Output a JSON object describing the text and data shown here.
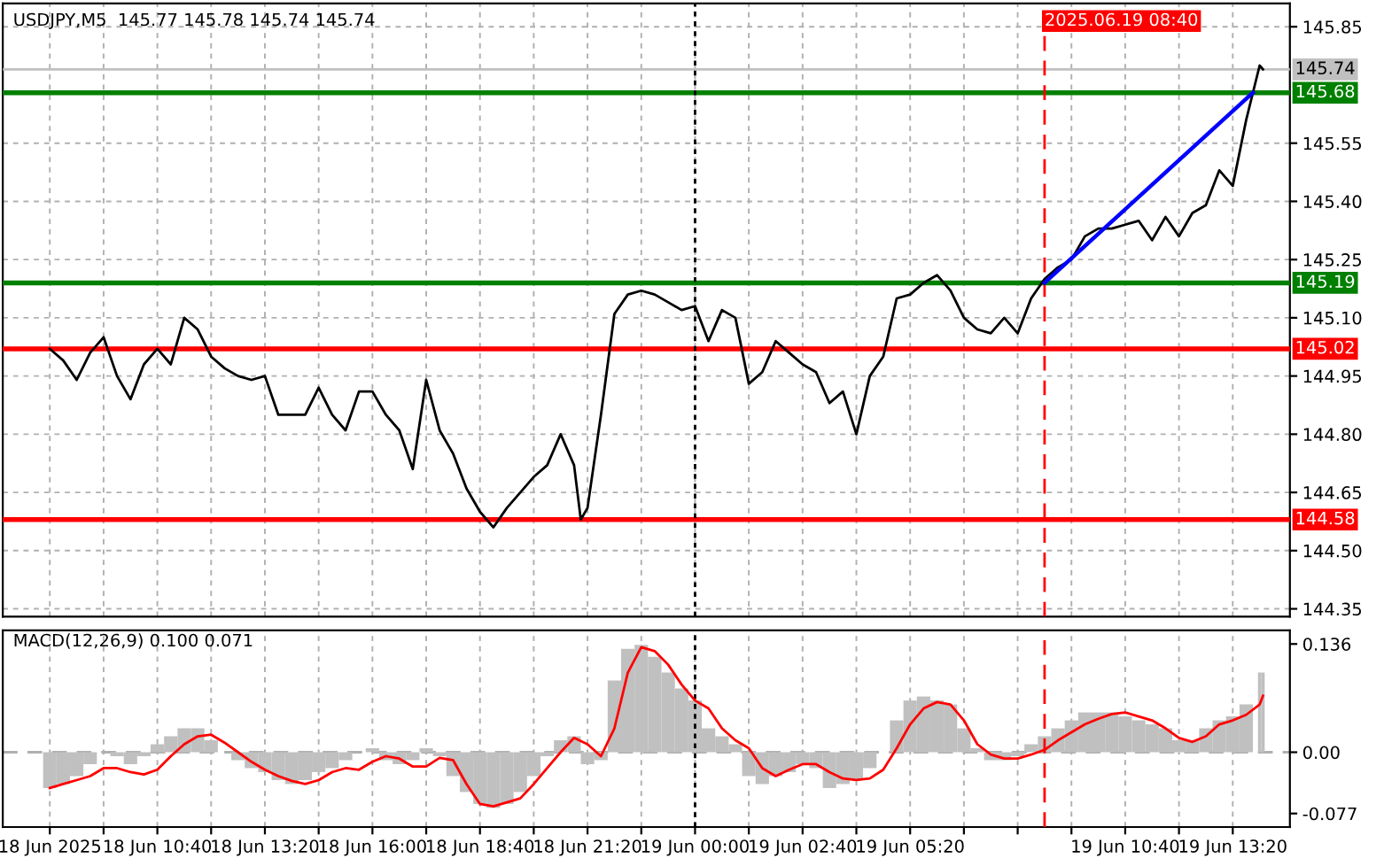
{
  "chart_data": [
    {
      "type": "line",
      "title": "USDJPY,M5  145.77 145.78 145.74 145.74",
      "xlim": [
        "2025-06-18T06:50",
        "2025-06-19T14:45"
      ],
      "xticks": [
        {
          "value": "2025-06-18T08:00",
          "label": null
        },
        {
          "value": "2025-06-18T09:20",
          "label": null
        },
        {
          "value": "2025-06-18T10:40",
          "label": null
        },
        {
          "value": "2025-06-18T12:00",
          "label": null
        },
        {
          "value": "2025-06-18T13:20",
          "label": null
        },
        {
          "value": "2025-06-18T14:40",
          "label": null
        },
        {
          "value": "2025-06-18T16:00",
          "label": null
        },
        {
          "value": "2025-06-18T17:20",
          "label": null
        },
        {
          "value": "2025-06-18T18:40",
          "label": null
        },
        {
          "value": "2025-06-18T20:00",
          "label": null
        },
        {
          "value": "2025-06-18T21:20",
          "label": null
        },
        {
          "value": "2025-06-18T22:40",
          "label": null
        },
        {
          "value": "2025-06-19T00:00",
          "label": null
        },
        {
          "value": "2025-06-19T01:20",
          "label": null
        },
        {
          "value": "2025-06-19T02:40",
          "label": null
        },
        {
          "value": "2025-06-19T04:00",
          "label": null
        },
        {
          "value": "2025-06-19T05:20",
          "label": null
        },
        {
          "value": "2025-06-19T06:40",
          "label": null
        },
        {
          "value": "2025-06-19T08:00",
          "label": null
        },
        {
          "value": "2025-06-19T09:20",
          "label": null
        },
        {
          "value": "2025-06-19T10:40",
          "label": null
        },
        {
          "value": "2025-06-19T12:00",
          "label": null
        },
        {
          "value": "2025-06-19T13:20",
          "label": null
        }
      ],
      "ylim": [
        144.33,
        145.91
      ],
      "yticks": [
        {
          "value": 144.35,
          "label": "144.35"
        },
        {
          "value": 144.5,
          "label": "144.50"
        },
        {
          "value": 144.65,
          "label": "144.65"
        },
        {
          "value": 144.8,
          "label": "144.80"
        },
        {
          "value": 144.95,
          "label": "144.95"
        },
        {
          "value": 145.1,
          "label": "145.10"
        },
        {
          "value": 145.25,
          "label": "145.25"
        },
        {
          "value": 145.4,
          "label": "145.40"
        },
        {
          "value": 145.55,
          "label": "145.55"
        },
        {
          "value": 145.85,
          "label": "145.85"
        }
      ],
      "tick_labels": "y",
      "grid": true,
      "series": [
        {
          "color": "#000000",
          "x": [
            "2025-06-18T08:00",
            "2025-06-18T08:20",
            "2025-06-18T08:40",
            "2025-06-18T09:00",
            "2025-06-18T09:20",
            "2025-06-18T09:40",
            "2025-06-18T10:00",
            "2025-06-18T10:20",
            "2025-06-18T10:40",
            "2025-06-18T11:00",
            "2025-06-18T11:20",
            "2025-06-18T11:40",
            "2025-06-18T12:00",
            "2025-06-18T12:20",
            "2025-06-18T12:40",
            "2025-06-18T13:00",
            "2025-06-18T13:20",
            "2025-06-18T13:40",
            "2025-06-18T14:00",
            "2025-06-18T14:20",
            "2025-06-18T14:40",
            "2025-06-18T15:00",
            "2025-06-18T15:20",
            "2025-06-18T15:40",
            "2025-06-18T16:00",
            "2025-06-18T16:20",
            "2025-06-18T16:40",
            "2025-06-18T17:00",
            "2025-06-18T17:20",
            "2025-06-18T17:40",
            "2025-06-18T18:00",
            "2025-06-18T18:20",
            "2025-06-18T18:40",
            "2025-06-18T19:00",
            "2025-06-18T19:20",
            "2025-06-18T19:40",
            "2025-06-18T20:00",
            "2025-06-18T20:20",
            "2025-06-18T20:40",
            "2025-06-18T21:00",
            "2025-06-18T21:10",
            "2025-06-18T21:20",
            "2025-06-18T21:40",
            "2025-06-18T22:00",
            "2025-06-18T22:20",
            "2025-06-18T22:40",
            "2025-06-18T23:00",
            "2025-06-18T23:20",
            "2025-06-18T23:40",
            "2025-06-19T00:00",
            "2025-06-19T00:20",
            "2025-06-19T00:40",
            "2025-06-19T01:00",
            "2025-06-19T01:20",
            "2025-06-19T01:40",
            "2025-06-19T02:00",
            "2025-06-19T02:20",
            "2025-06-19T02:40",
            "2025-06-19T03:00",
            "2025-06-19T03:20",
            "2025-06-19T03:40",
            "2025-06-19T04:00",
            "2025-06-19T04:20",
            "2025-06-19T04:40",
            "2025-06-19T05:00",
            "2025-06-19T05:20",
            "2025-06-19T05:40",
            "2025-06-19T06:00",
            "2025-06-19T06:20",
            "2025-06-19T06:40",
            "2025-06-19T07:00",
            "2025-06-19T07:20",
            "2025-06-19T07:40",
            "2025-06-19T08:00",
            "2025-06-19T08:20",
            "2025-06-19T08:40",
            "2025-06-19T09:00",
            "2025-06-19T09:20",
            "2025-06-19T09:40",
            "2025-06-19T10:00",
            "2025-06-19T10:20",
            "2025-06-19T10:40",
            "2025-06-19T11:00",
            "2025-06-19T11:20",
            "2025-06-19T11:40",
            "2025-06-19T12:00",
            "2025-06-19T12:20",
            "2025-06-19T12:40",
            "2025-06-19T13:00",
            "2025-06-19T13:20",
            "2025-06-19T13:40",
            "2025-06-19T14:00",
            "2025-06-19T14:05"
          ],
          "values": [
            145.02,
            144.99,
            144.94,
            145.01,
            145.05,
            144.95,
            144.89,
            144.98,
            145.02,
            144.98,
            145.1,
            145.07,
            145.0,
            144.97,
            144.95,
            144.94,
            144.95,
            144.85,
            144.85,
            144.85,
            144.92,
            144.85,
            144.81,
            144.91,
            144.91,
            144.85,
            144.81,
            144.71,
            144.94,
            144.81,
            144.75,
            144.66,
            144.6,
            144.56,
            144.61,
            144.65,
            144.69,
            144.72,
            144.8,
            144.72,
            144.58,
            144.61,
            144.85,
            145.11,
            145.16,
            145.17,
            145.16,
            145.14,
            145.12,
            145.13,
            145.04,
            145.12,
            145.1,
            144.93,
            144.96,
            145.04,
            145.01,
            144.98,
            144.96,
            144.88,
            144.91,
            144.8,
            144.95,
            145.0,
            145.15,
            145.16,
            145.19,
            145.21,
            145.17,
            145.1,
            145.07,
            145.06,
            145.1,
            145.06,
            145.15,
            145.2,
            145.23,
            145.25,
            145.31,
            145.33,
            145.33,
            145.34,
            145.35,
            145.3,
            145.36,
            145.31,
            145.37,
            145.39,
            145.48,
            145.44,
            145.61,
            145.75,
            145.74
          ]
        },
        {
          "color": "#0000ff",
          "x": [
            "2025-06-19T08:40",
            "2025-06-19T13:50"
          ],
          "values": [
            145.19,
            145.68
          ]
        }
      ],
      "ref_lines": [
        {
          "axis": "y",
          "value": 145.74,
          "label": "145.74",
          "color": "#c0c0c0"
        },
        {
          "axis": "y",
          "value": 145.68,
          "label": "145.68",
          "color": "#008000"
        },
        {
          "axis": "y",
          "value": 145.19,
          "label": "145.19",
          "color": "#008000"
        },
        {
          "axis": "y",
          "value": 145.02,
          "label": "145.02",
          "color": "#ff0000"
        },
        {
          "axis": "y",
          "value": 144.58,
          "label": "144.58",
          "color": "#ff0000"
        },
        {
          "axis": "x",
          "value": "2025-06-19T00:00",
          "label": null,
          "color": "#000000",
          "line_style": "dotted"
        },
        {
          "axis": "x",
          "value": "2025-06-19T08:40",
          "label": "2025.06.19 08:40",
          "color": "#ff0000",
          "line_style": "dashed"
        }
      ]
    },
    {
      "type": "bar",
      "title": "MACD(12,26,9) 0.100 0.071",
      "x": [
        "2025-06-18T08:00",
        "2025-06-18T08:20",
        "2025-06-18T08:40",
        "2025-06-18T09:00",
        "2025-06-18T09:20",
        "2025-06-18T09:40",
        "2025-06-18T10:00",
        "2025-06-18T10:20",
        "2025-06-18T10:40",
        "2025-06-18T11:00",
        "2025-06-18T11:20",
        "2025-06-18T11:40",
        "2025-06-18T12:00",
        "2025-06-18T12:20",
        "2025-06-18T12:40",
        "2025-06-18T13:00",
        "2025-06-18T13:20",
        "2025-06-18T13:40",
        "2025-06-18T14:00",
        "2025-06-18T14:20",
        "2025-06-18T14:40",
        "2025-06-18T15:00",
        "2025-06-18T15:20",
        "2025-06-18T15:40",
        "2025-06-18T16:00",
        "2025-06-18T16:20",
        "2025-06-18T16:40",
        "2025-06-18T17:00",
        "2025-06-18T17:20",
        "2025-06-18T17:40",
        "2025-06-18T18:00",
        "2025-06-18T18:20",
        "2025-06-18T18:40",
        "2025-06-18T19:00",
        "2025-06-18T19:20",
        "2025-06-18T19:40",
        "2025-06-18T20:00",
        "2025-06-18T20:20",
        "2025-06-18T20:40",
        "2025-06-18T21:00",
        "2025-06-18T21:20",
        "2025-06-18T21:40",
        "2025-06-18T22:00",
        "2025-06-18T22:20",
        "2025-06-18T22:40",
        "2025-06-18T23:00",
        "2025-06-18T23:20",
        "2025-06-18T23:40",
        "2025-06-19T00:00",
        "2025-06-19T00:20",
        "2025-06-19T00:40",
        "2025-06-19T01:00",
        "2025-06-19T01:20",
        "2025-06-19T01:40",
        "2025-06-19T02:00",
        "2025-06-19T02:20",
        "2025-06-19T02:40",
        "2025-06-19T03:00",
        "2025-06-19T03:20",
        "2025-06-19T03:40",
        "2025-06-19T04:00",
        "2025-06-19T04:20",
        "2025-06-19T04:40",
        "2025-06-19T05:00",
        "2025-06-19T05:20",
        "2025-06-19T05:40",
        "2025-06-19T06:00",
        "2025-06-19T06:20",
        "2025-06-19T06:40",
        "2025-06-19T07:00",
        "2025-06-19T07:20",
        "2025-06-19T07:40",
        "2025-06-19T08:00",
        "2025-06-19T08:20",
        "2025-06-19T08:40",
        "2025-06-19T09:00",
        "2025-06-19T09:20",
        "2025-06-19T09:40",
        "2025-06-19T10:00",
        "2025-06-19T10:20",
        "2025-06-19T10:40",
        "2025-06-19T11:00",
        "2025-06-19T11:20",
        "2025-06-19T11:40",
        "2025-06-19T12:00",
        "2025-06-19T12:20",
        "2025-06-19T12:40",
        "2025-06-19T13:00",
        "2025-06-19T13:20",
        "2025-06-19T13:40",
        "2025-06-19T14:00",
        "2025-06-19T14:05"
      ],
      "xlim": [
        "2025-06-18T06:50",
        "2025-06-19T14:45"
      ],
      "xticks": [
        {
          "value": "2025-06-18T08:00",
          "label": "18 Jun 2025"
        },
        {
          "value": "2025-06-18T09:20",
          "label": null
        },
        {
          "value": "2025-06-18T10:40",
          "label": "18 Jun 10:40"
        },
        {
          "value": "2025-06-18T12:00",
          "label": null
        },
        {
          "value": "2025-06-18T13:20",
          "label": "18 Jun 13:20"
        },
        {
          "value": "2025-06-18T14:40",
          "label": null
        },
        {
          "value": "2025-06-18T16:00",
          "label": "18 Jun 16:00"
        },
        {
          "value": "2025-06-18T17:20",
          "label": null
        },
        {
          "value": "2025-06-18T18:40",
          "label": "18 Jun 18:40"
        },
        {
          "value": "2025-06-18T20:00",
          "label": null
        },
        {
          "value": "2025-06-18T21:20",
          "label": "18 Jun 21:20"
        },
        {
          "value": "2025-06-18T22:40",
          "label": null
        },
        {
          "value": "2025-06-19T00:00",
          "label": "19 Jun 00:00"
        },
        {
          "value": "2025-06-19T01:20",
          "label": null
        },
        {
          "value": "2025-06-19T02:40",
          "label": "19 Jun 02:40"
        },
        {
          "value": "2025-06-19T04:00",
          "label": null
        },
        {
          "value": "2025-06-19T05:20",
          "label": "19 Jun 05:20"
        },
        {
          "value": "2025-06-19T06:40",
          "label": null
        },
        {
          "value": "2025-06-19T08:00",
          "label": null
        },
        {
          "value": "2025-06-19T09:20",
          "label": null
        },
        {
          "value": "2025-06-19T10:40",
          "label": "19 Jun 10:40"
        },
        {
          "value": "2025-06-19T12:00",
          "label": null
        },
        {
          "value": "2025-06-19T13:20",
          "label": "19 Jun 13:20"
        }
      ],
      "ylim": [
        -0.094,
        0.153
      ],
      "yticks": [
        {
          "value": -0.077,
          "label": "-0.077"
        },
        {
          "value": 0,
          "label": "0.00"
        },
        {
          "value": 0.136,
          "label": "0.136"
        }
      ],
      "grid": "x",
      "series": [
        {
          "color": "#c0c0c0",
          "values": [
            -0.045,
            -0.04,
            -0.03,
            -0.015,
            0.0,
            -0.005,
            -0.015,
            -0.005,
            0.01,
            0.02,
            0.03,
            0.03,
            0.015,
            0.0,
            -0.01,
            -0.02,
            -0.025,
            -0.035,
            -0.04,
            -0.035,
            -0.025,
            -0.02,
            -0.01,
            0.0,
            0.005,
            -0.01,
            -0.015,
            -0.01,
            0.005,
            -0.005,
            -0.03,
            -0.05,
            -0.065,
            -0.07,
            -0.065,
            -0.05,
            -0.03,
            -0.005,
            0.015,
            0.02,
            -0.015,
            -0.01,
            0.09,
            0.13,
            0.135,
            0.12,
            0.1,
            0.08,
            0.065,
            0.03,
            0.02,
            0.01,
            -0.03,
            -0.04,
            -0.03,
            -0.025,
            -0.015,
            -0.02,
            -0.045,
            -0.04,
            -0.035,
            -0.02,
            0.0,
            0.04,
            0.065,
            0.07,
            0.065,
            0.06,
            0.03,
            0.005,
            -0.01,
            -0.01,
            -0.005,
            0.01,
            0.02,
            0.03,
            0.04,
            0.05,
            0.05,
            0.05,
            0.045,
            0.04,
            0.035,
            0.03,
            0.015,
            0.015,
            0.03,
            0.04,
            0.045,
            0.06,
            0.1,
            0.1
          ]
        },
        {
          "type": "line",
          "color": "#ff0000",
          "values": [
            -0.045,
            -0.04,
            -0.035,
            -0.03,
            -0.02,
            -0.02,
            -0.025,
            -0.028,
            -0.022,
            -0.005,
            0.01,
            0.02,
            0.022,
            0.012,
            0.0,
            -0.012,
            -0.022,
            -0.03,
            -0.036,
            -0.04,
            -0.035,
            -0.025,
            -0.02,
            -0.022,
            -0.012,
            -0.005,
            -0.008,
            -0.018,
            -0.018,
            -0.007,
            -0.01,
            -0.04,
            -0.065,
            -0.068,
            -0.063,
            -0.058,
            -0.04,
            -0.02,
            0.0,
            0.018,
            0.01,
            -0.005,
            0.03,
            0.1,
            0.132,
            0.127,
            0.11,
            0.085,
            0.065,
            0.055,
            0.03,
            0.015,
            0.005,
            -0.02,
            -0.03,
            -0.022,
            -0.015,
            -0.015,
            -0.025,
            -0.033,
            -0.035,
            -0.033,
            -0.022,
            0.005,
            0.035,
            0.055,
            0.063,
            0.06,
            0.04,
            0.01,
            -0.003,
            -0.008,
            -0.008,
            -0.003,
            0.003,
            0.015,
            0.025,
            0.035,
            0.042,
            0.048,
            0.05,
            0.045,
            0.04,
            0.03,
            0.018,
            0.013,
            0.02,
            0.035,
            0.04,
            0.047,
            0.06,
            0.071
          ]
        }
      ],
      "ref_lines": [
        {
          "axis": "y",
          "value": 0,
          "label": null,
          "color": "#b0b0b0",
          "line_style": "dashed"
        },
        {
          "axis": "x",
          "value": "2025-06-19T00:00",
          "label": null,
          "color": "#000000",
          "line_style": "dotted"
        },
        {
          "axis": "x",
          "value": "2025-06-19T08:40",
          "label": null,
          "color": "#ff0000",
          "line_style": "dashed"
        }
      ]
    }
  ]
}
